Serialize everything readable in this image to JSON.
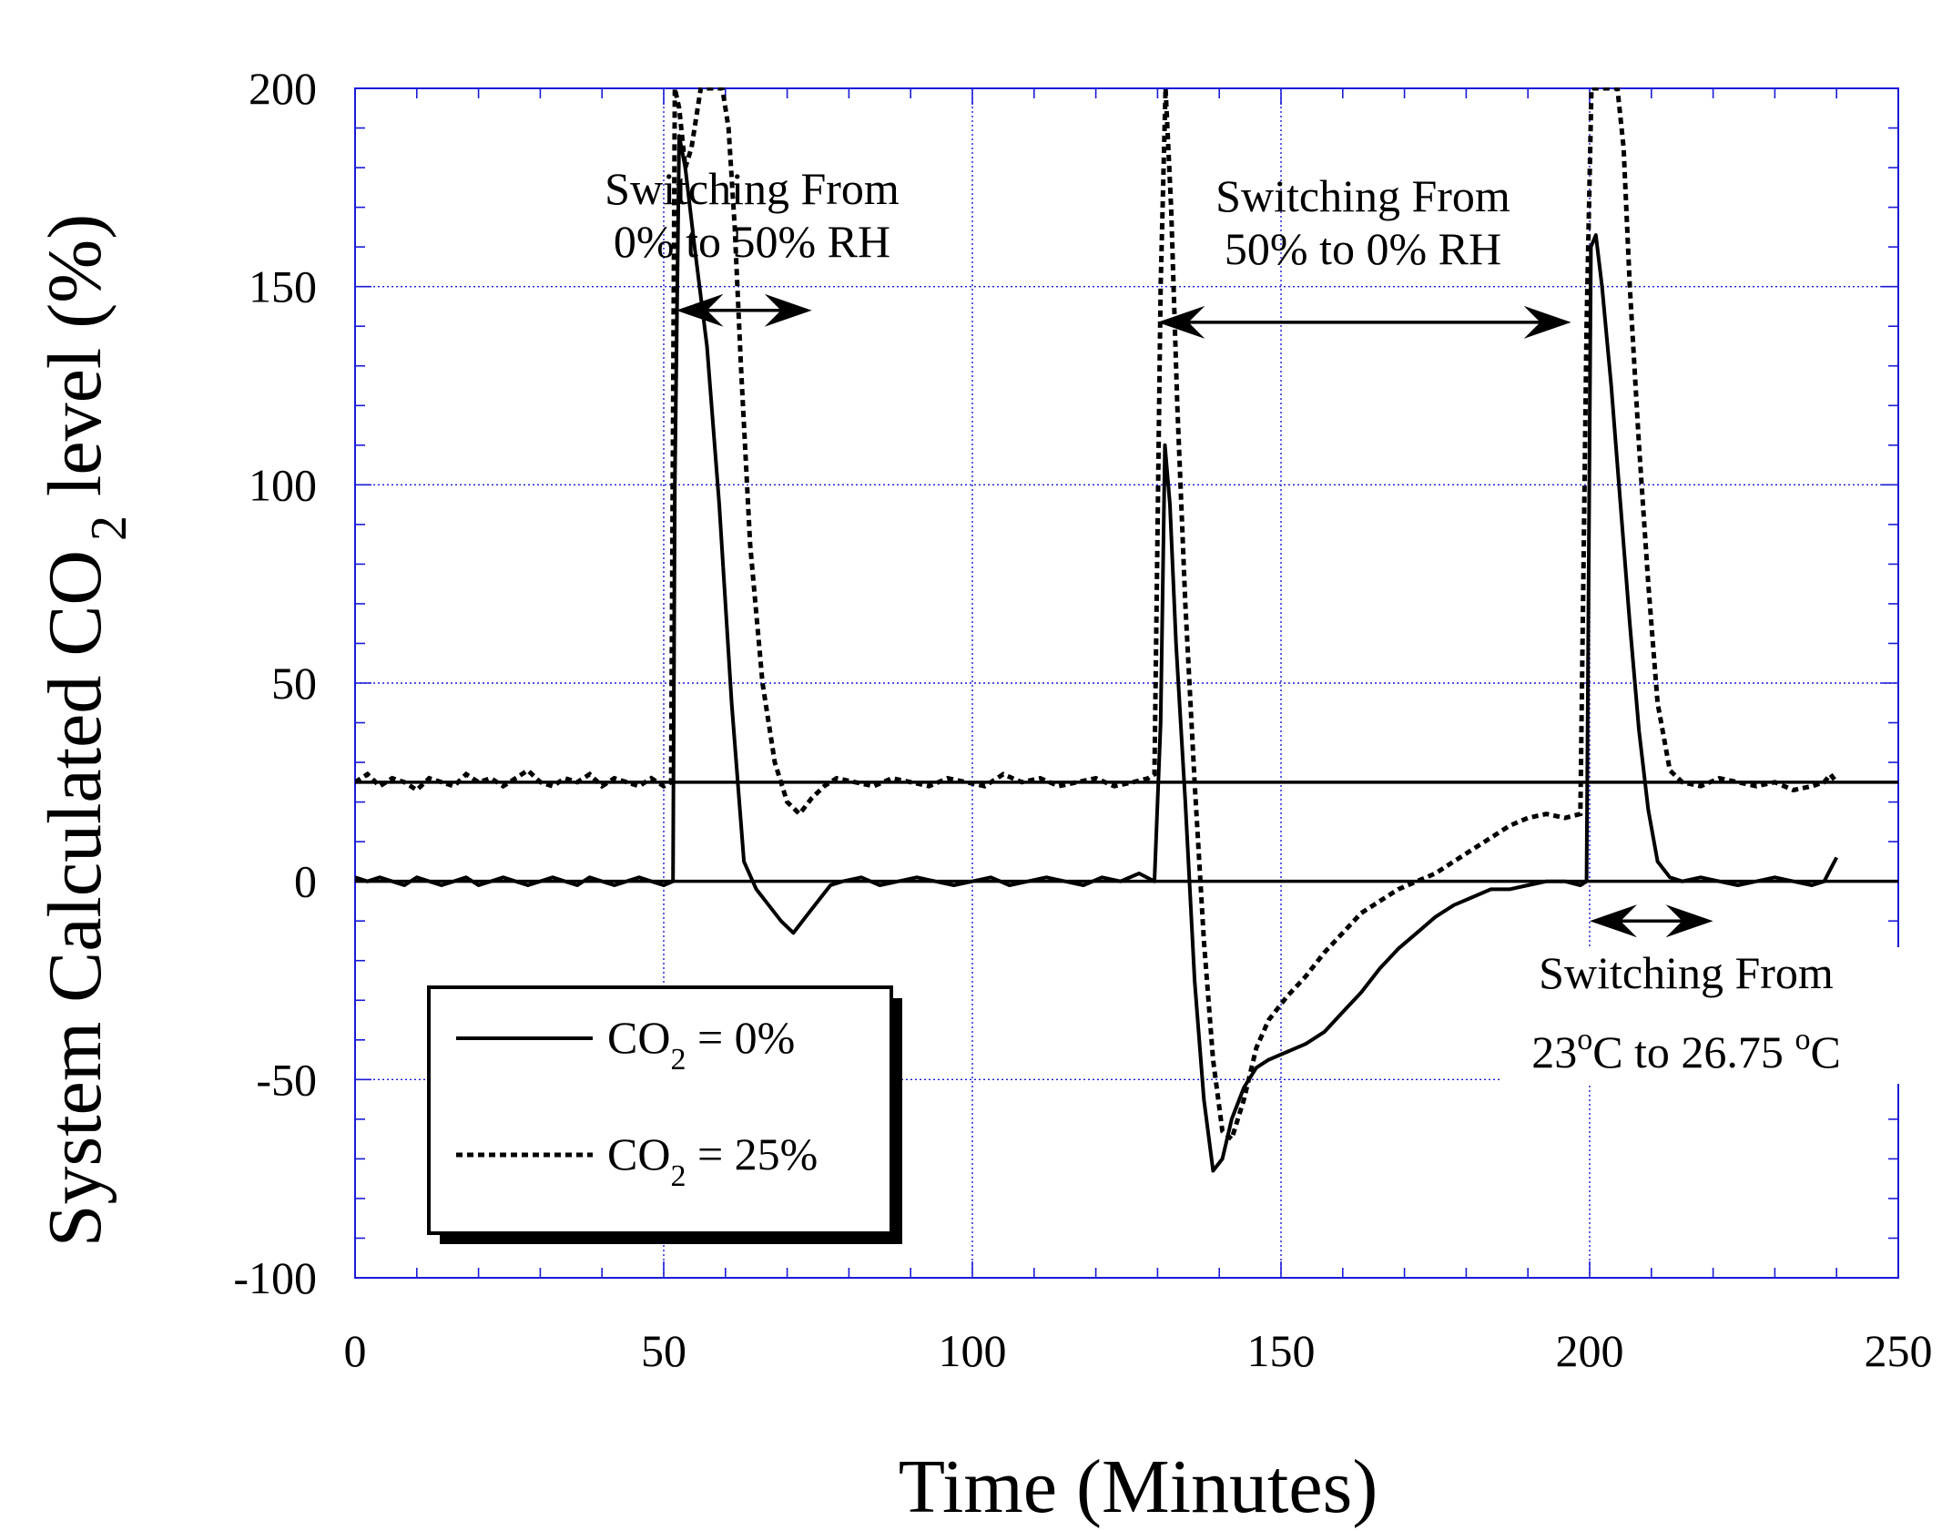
{
  "chart_data": {
    "type": "line",
    "title": "",
    "xlabel": "Time (Minutes)",
    "ylabel": {
      "prefix": "System Calculated CO",
      "subscript": "2",
      "suffix": " level (%)"
    },
    "xlim": [
      0,
      250
    ],
    "ylim": [
      -100,
      200
    ],
    "x_ticks": [
      0,
      50,
      100,
      150,
      200,
      250
    ],
    "x_tick_labels": [
      "0",
      "50",
      "100",
      "150",
      "200",
      "250"
    ],
    "y_ticks": [
      200,
      150,
      100,
      50,
      0,
      -50,
      -100
    ],
    "y_tick_labels": [
      "200",
      "150",
      "100",
      "50",
      "0",
      "-50",
      "-100"
    ],
    "grid": true,
    "legend_position": "bottom-left",
    "reference_lines": [
      0,
      25
    ],
    "series": [
      {
        "name": "CO2 = 0%",
        "legend": {
          "prefix": "CO",
          "subscript": "2",
          "suffix": " = 0%"
        },
        "style": "solid",
        "x": [
          0,
          2,
          4,
          6,
          8,
          10,
          12,
          14,
          16,
          18,
          20,
          22,
          24,
          26,
          28,
          30,
          32,
          34,
          36,
          38,
          40,
          42,
          44,
          46,
          48,
          50,
          51.5,
          51.8,
          52.5,
          53.5,
          55,
          57,
          59,
          61,
          63,
          65,
          67,
          69,
          71,
          73,
          75,
          77,
          79,
          82,
          85,
          88,
          91,
          94,
          97,
          100,
          103,
          106,
          109,
          112,
          115,
          118,
          121,
          124,
          127,
          129.5,
          130.5,
          131.2,
          132,
          133,
          134.5,
          136,
          137.5,
          139,
          140.5,
          142,
          144,
          146,
          148,
          151,
          154,
          157,
          160,
          163,
          166,
          169,
          172,
          175,
          178,
          181,
          184,
          187,
          190,
          193,
          196,
          198.5,
          199.5,
          200.2,
          201,
          202,
          203.5,
          205,
          206.5,
          208,
          209.5,
          211,
          213,
          215,
          218,
          221,
          224,
          227,
          230,
          233,
          236,
          238,
          239,
          240
        ],
        "y": [
          1,
          0,
          1,
          0,
          -1,
          1,
          0,
          -1,
          0,
          1,
          -1,
          0,
          1,
          0,
          -1,
          0,
          1,
          0,
          -1,
          1,
          0,
          -1,
          0,
          1,
          0,
          -1,
          0,
          100,
          188,
          180,
          160,
          135,
          95,
          45,
          5,
          -2,
          -6,
          -10,
          -13,
          -9,
          -5,
          -1,
          0,
          1,
          -1,
          0,
          1,
          0,
          -1,
          0,
          1,
          -1,
          0,
          1,
          0,
          -1,
          1,
          0,
          2,
          0,
          40,
          110,
          95,
          60,
          20,
          -25,
          -55,
          -73,
          -70,
          -60,
          -52,
          -47,
          -45,
          -43,
          -41,
          -38,
          -33,
          -28,
          -22,
          -17,
          -13,
          -9,
          -6,
          -4,
          -2,
          -2,
          -1,
          0,
          0,
          -1,
          0,
          160,
          163,
          150,
          125,
          95,
          65,
          38,
          18,
          5,
          1,
          0,
          1,
          0,
          -1,
          0,
          1,
          0,
          -1,
          0,
          3,
          6
        ]
      },
      {
        "name": "CO2 = 25%",
        "legend": {
          "prefix": "CO",
          "subscript": "2",
          "suffix": " = 25%"
        },
        "style": "dotted",
        "x": [
          0,
          2,
          4,
          6,
          8,
          10,
          12,
          14,
          16,
          18,
          20,
          22,
          24,
          26,
          28,
          30,
          32,
          34,
          36,
          38,
          40,
          42,
          44,
          46,
          48,
          50,
          51.2,
          51.8,
          52.5,
          53.5,
          54.5,
          56,
          58,
          59.5,
          60.5,
          61.5,
          62.5,
          64,
          66,
          68,
          70,
          72,
          74,
          76,
          78,
          81,
          84,
          87,
          90,
          93,
          96,
          99,
          102,
          105,
          108,
          111,
          114,
          117,
          120,
          123,
          126,
          128.5,
          129.5,
          130.5,
          131.3,
          132.2,
          133.2,
          134.5,
          136,
          137.5,
          139,
          140.5,
          142,
          144,
          146,
          148,
          151,
          154,
          157,
          160,
          163,
          166,
          169,
          172,
          175,
          178,
          181,
          184,
          187,
          190,
          193,
          196,
          198.5,
          199.5,
          200.3,
          201.5,
          202.5,
          203.5,
          204.5,
          205.5,
          206.5,
          208,
          209.5,
          211,
          213,
          215,
          218,
          221,
          224,
          227,
          230,
          233,
          236,
          238,
          239,
          240
        ],
        "y": [
          25,
          27,
          24,
          26,
          25,
          23,
          26,
          25,
          24,
          27,
          25,
          26,
          24,
          26,
          28,
          25,
          24,
          26,
          25,
          27,
          24,
          26,
          25,
          24,
          26,
          24,
          25,
          200,
          195,
          180,
          185,
          200,
          200,
          200,
          190,
          165,
          130,
          85,
          50,
          30,
          20,
          17,
          21,
          24,
          26,
          25,
          24,
          26,
          25,
          24,
          26,
          25,
          24,
          27,
          25,
          26,
          24,
          25,
          26,
          24,
          25,
          26,
          27,
          150,
          200,
          170,
          120,
          70,
          25,
          -15,
          -45,
          -63,
          -65,
          -55,
          -42,
          -35,
          -29,
          -24,
          -18,
          -13,
          -8,
          -5,
          -2,
          0,
          2,
          5,
          8,
          11,
          14,
          16,
          17,
          16,
          17,
          140,
          200,
          200,
          200,
          200,
          200,
          185,
          150,
          110,
          75,
          45,
          28,
          25,
          24,
          26,
          25,
          24,
          25,
          23,
          24,
          25,
          27,
          25
        ]
      }
    ],
    "annotations": [
      {
        "id": "ann-rh-up",
        "lines": [
          "Switching From",
          "0% to 50% RH"
        ]
      },
      {
        "id": "ann-rh-down",
        "lines": [
          "Switching From",
          "50% to 0% RH"
        ]
      },
      {
        "id": "ann-temp",
        "lines": [
          "Switching From"
        ],
        "temp_line": {
          "start": "23",
          "start_sup": "o",
          "middle": "C to 26.75 ",
          "end_sup": "o",
          "end": "C"
        }
      }
    ],
    "arrows": [
      {
        "id": "arrow-rh-up",
        "x1": 52,
        "x2": 74,
        "y": 144
      },
      {
        "id": "arrow-rh-down",
        "x1": 130,
        "x2": 197,
        "y": 141
      },
      {
        "id": "arrow-temp",
        "x1": 200,
        "x2": 220,
        "y": -10
      }
    ]
  }
}
